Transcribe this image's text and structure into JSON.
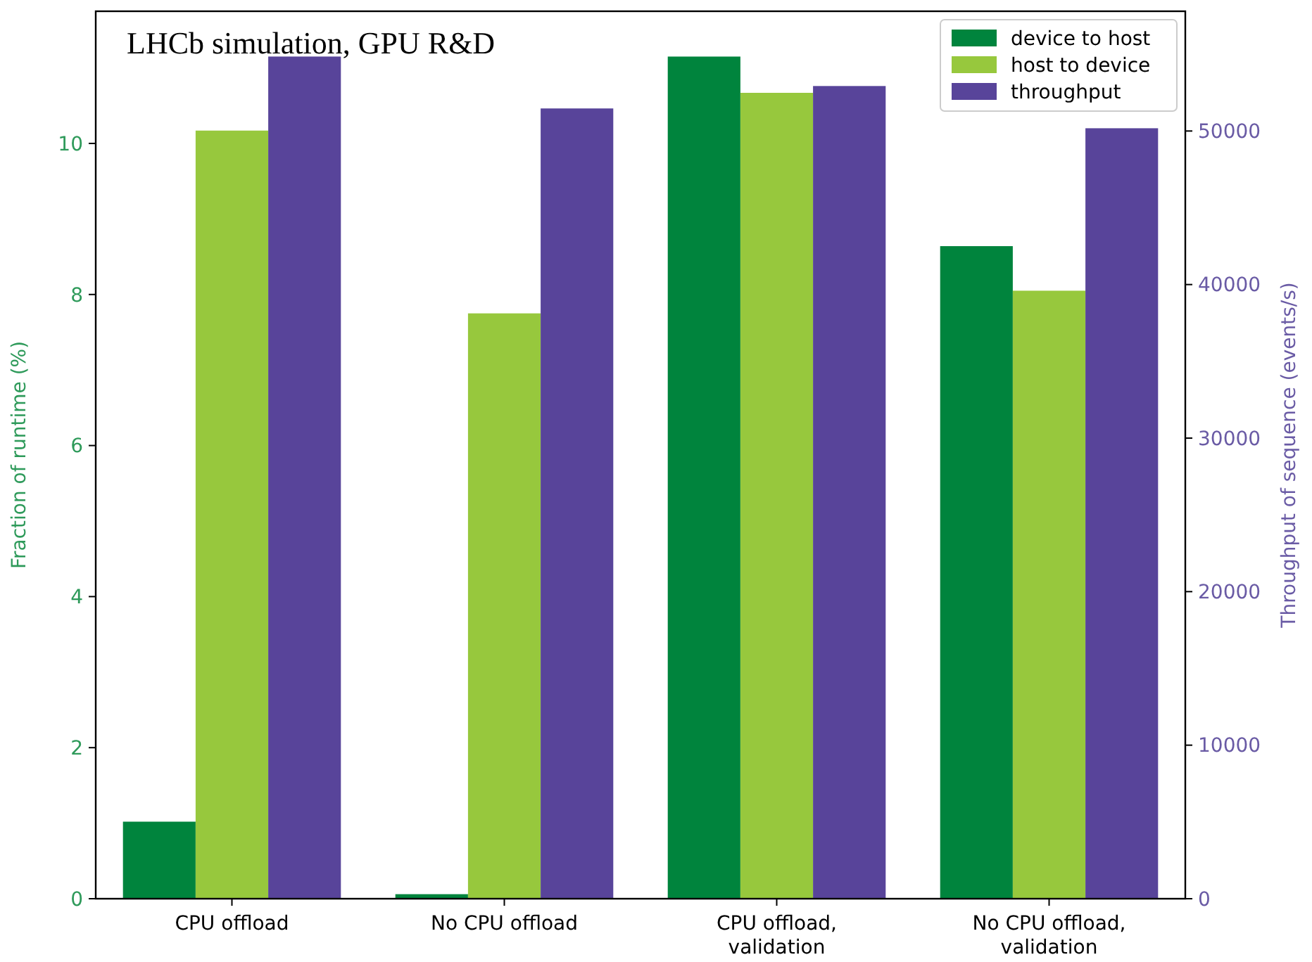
{
  "chart_data": {
    "type": "bar",
    "categories": [
      "CPU offload",
      "No CPU offload",
      "CPU offload,\nvalidation",
      "No CPU offload,\nvalidation"
    ],
    "ylabel": "Fraction of runtime (%)",
    "y2label": "Throughput of sequence (events/s)",
    "ylim": [
      0,
      11.75
    ],
    "yticks": [
      0,
      2,
      4,
      6,
      8,
      10
    ],
    "y2lim": [
      0,
      57800
    ],
    "y2ticks": [
      0,
      10000,
      20000,
      30000,
      40000,
      50000
    ],
    "annotations": [
      "LHCb simulation, GPU R&D"
    ],
    "legend": "top right",
    "grid": false,
    "series": [
      {
        "name": "device to host",
        "color": "#00843d",
        "values": [
          1.02,
          0.06,
          11.15,
          8.64
        ]
      },
      {
        "name": "host to device",
        "color": "#97c83d",
        "values": [
          10.17,
          7.75,
          10.67,
          8.05
        ]
      },
      {
        "name": "throughput",
        "color": "#58449a",
        "axis": "y2",
        "values": [
          54850,
          51470,
          52930,
          50180
        ]
      }
    ]
  }
}
